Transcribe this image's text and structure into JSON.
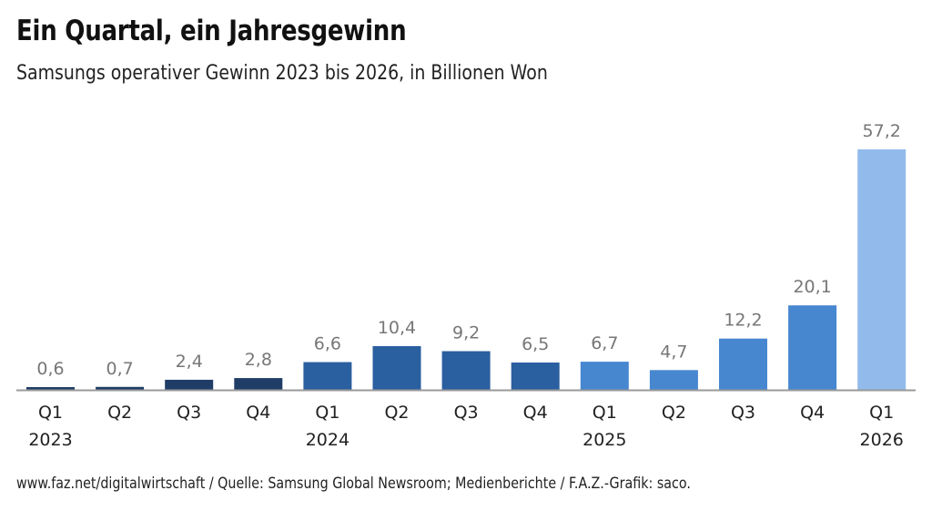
{
  "header": {
    "title": "Ein Quartal, ein Jahresgewinn",
    "subtitle": "Samsungs operativer Gewinn 2023 bis 2026, in Billionen Won"
  },
  "footer": {
    "source": "www.faz.net/digitalwirtschaft / Quelle: Samsung Global Newsroom; Medienberichte / F.A.Z.-Grafik: saco."
  },
  "chart_data": {
    "type": "bar",
    "title": "Ein Quartal, ein Jahresgewinn",
    "subtitle": "Samsungs operativer Gewinn 2023 bis 2026, in Billionen Won",
    "xlabel": "",
    "ylabel": "",
    "ylim": [
      0,
      57.2
    ],
    "grid": false,
    "categories": [
      "Q1",
      "Q2",
      "Q3",
      "Q4",
      "Q1",
      "Q2",
      "Q3",
      "Q4",
      "Q1",
      "Q2",
      "Q3",
      "Q4",
      "Q1"
    ],
    "year_labels": [
      "2023",
      "",
      "",
      "",
      "2024",
      "",
      "",
      "",
      "2025",
      "",
      "",
      "",
      "2026"
    ],
    "values": [
      0.6,
      0.7,
      2.4,
      2.8,
      6.6,
      10.4,
      9.2,
      6.5,
      6.7,
      4.7,
      12.2,
      20.1,
      57.2
    ],
    "value_labels": [
      "0,6",
      "0,7",
      "2,4",
      "2,8",
      "6,6",
      "10,4",
      "9,2",
      "6,5",
      "6,7",
      "4,7",
      "12,2",
      "20,1",
      "57,2"
    ],
    "year_colors": {
      "2023": "#1f3d66",
      "2024": "#2a5fa0",
      "2025": "#4787d0",
      "2026": "#92bbeb"
    },
    "bar_years": [
      "2023",
      "2023",
      "2023",
      "2023",
      "2024",
      "2024",
      "2024",
      "2024",
      "2025",
      "2025",
      "2025",
      "2025",
      "2026"
    ],
    "axis_color": "#9a9a9a"
  }
}
